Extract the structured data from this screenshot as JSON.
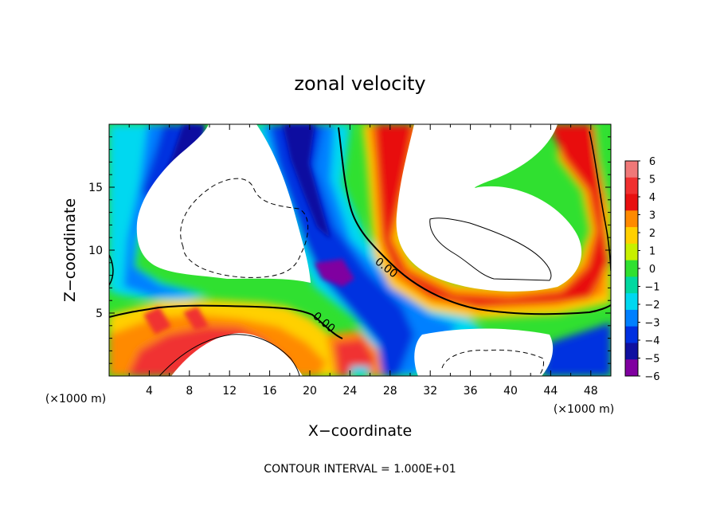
{
  "chart_data": {
    "type": "heatmap",
    "title": "zonal velocity",
    "xlabel": "X−coordinate",
    "ylabel": "Z−coordinate",
    "x_unit_label": "(×1000 m)",
    "z_unit_label": "(×1000 m)",
    "xlim": [
      0,
      50
    ],
    "ylim": [
      0,
      20
    ],
    "x_ticks": [
      4,
      8,
      12,
      16,
      20,
      24,
      28,
      32,
      36,
      40,
      44,
      48
    ],
    "y_ticks": [
      5,
      10,
      15
    ],
    "colorbar": {
      "levels": [
        6,
        5,
        4,
        3,
        2,
        1,
        0,
        -1,
        -2,
        -3,
        -4,
        -5,
        -6
      ],
      "labels": [
        "6",
        "5",
        "4",
        "3",
        "2",
        "1",
        "0",
        "−1",
        "−2",
        "−3",
        "−4",
        "−5",
        "−6"
      ],
      "colors": [
        "#f07878",
        "#f03030",
        "#e81010",
        "#ff8a00",
        "#ffd000",
        "#c8f000",
        "#30e030",
        "#00d8a0",
        "#00d8f0",
        "#0080ff",
        "#0030e0",
        "#1010a0",
        "#8000a0"
      ]
    },
    "contour_labels": [
      "0.00",
      "0.00"
    ],
    "footer": "CONTOUR INTERVAL = 1.000E+01"
  }
}
